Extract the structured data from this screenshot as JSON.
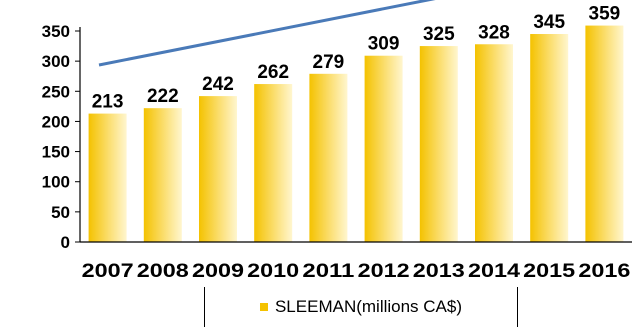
{
  "chart_data": {
    "type": "bar",
    "categories": [
      "2007",
      "2008",
      "2009",
      "2010",
      "2011",
      "2012",
      "2013",
      "2014",
      "2015",
      "2016"
    ],
    "series": [
      {
        "name": "SLEEMAN(millions CA$)",
        "values": [
          213,
          222,
          242,
          262,
          279,
          309,
          325,
          328,
          345,
          359
        ]
      }
    ],
    "data_labels": [
      "213",
      "222",
      "242",
      "262",
      "279",
      "309",
      "325",
      "328",
      "345",
      "359"
    ],
    "ylim": [
      0,
      350
    ],
    "yticks": [
      "0",
      "50",
      "100",
      "150",
      "200",
      "250",
      "300",
      "350"
    ],
    "title": "",
    "xlabel": "",
    "ylabel": "",
    "legend_position": "bottom",
    "trend_arrow": true,
    "colors": {
      "bar_dark": "#f4c200",
      "bar_light": "#fff6cf",
      "trend": "#4a7ab8"
    }
  }
}
